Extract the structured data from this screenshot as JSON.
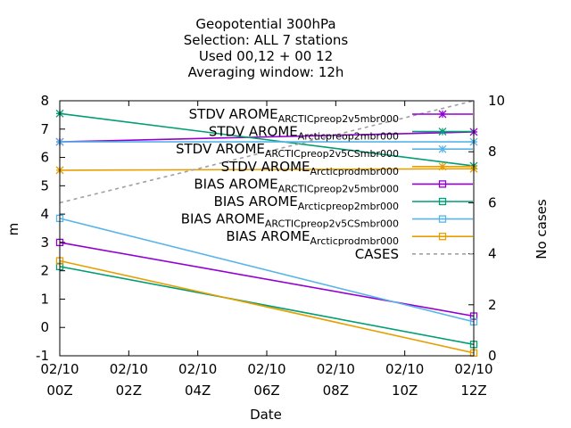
{
  "chart_data": {
    "type": "line",
    "title_lines": [
      "Geopotential 300hPa",
      "Selection: ALL      7 stations",
      "Used  00,12  + 00 12",
      "Averaging window: 12h"
    ],
    "xlabel": "Date",
    "ylabel": "m",
    "y2label": "No cases",
    "x": [
      0,
      12
    ],
    "xticks": [
      {
        "v": 0,
        "line1": "02/10",
        "line2": "00Z"
      },
      {
        "v": 2,
        "line1": "02/10",
        "line2": "02Z"
      },
      {
        "v": 4,
        "line1": "02/10",
        "line2": "04Z"
      },
      {
        "v": 6,
        "line1": "02/10",
        "line2": "06Z"
      },
      {
        "v": 8,
        "line1": "02/10",
        "line2": "08Z"
      },
      {
        "v": 10,
        "line1": "02/10",
        "line2": "10Z"
      },
      {
        "v": 12,
        "line1": "02/10",
        "line2": "12Z"
      }
    ],
    "ylim": [
      -1,
      8
    ],
    "yticks": [
      "-1",
      "0",
      "1",
      "2",
      "3",
      "4",
      "5",
      "6",
      "7",
      "8"
    ],
    "y2lim": [
      0,
      10
    ],
    "y2ticks": [
      "0",
      "2",
      "4",
      "6",
      "8",
      "10"
    ],
    "grid": false,
    "legend_position": "top-right",
    "series": [
      {
        "name": "STDV AROME_ARCTIC_preop2_v_5mbr000",
        "color": "#9400d3",
        "marker": "star",
        "axis": "y1",
        "values": [
          6.55,
          6.9
        ]
      },
      {
        "name": "STDV AROME_Arctic_preop2mbr000",
        "color": "#009e73",
        "marker": "star",
        "axis": "y1",
        "values": [
          7.55,
          5.7
        ]
      },
      {
        "name": "STDV AROME_ARCTIC_preop2_v_5_CSmbr000",
        "color": "#56b4e9",
        "marker": "star",
        "axis": "y1",
        "values": [
          6.55,
          6.55
        ]
      },
      {
        "name": "STDV AROME_Arctic_prodmbr000",
        "color": "#e69f00",
        "marker": "star",
        "axis": "y1",
        "values": [
          5.55,
          5.6
        ]
      },
      {
        "name": "BIAS AROME_ARCTIC_preop2_v_5mbr000",
        "color": "#9400d3",
        "marker": "square",
        "axis": "y1",
        "values": [
          3.0,
          0.4
        ]
      },
      {
        "name": "BIAS AROME_Arctic_preop2mbr000",
        "color": "#009e73",
        "marker": "square",
        "axis": "y1",
        "values": [
          2.15,
          -0.6
        ]
      },
      {
        "name": "BIAS AROME_ARCTIC_preop2_v_5_CSmbr000",
        "color": "#56b4e9",
        "marker": "square",
        "axis": "y1",
        "values": [
          3.85,
          0.2
        ]
      },
      {
        "name": "BIAS AROME_Arctic_prodmbr000",
        "color": "#e69f00",
        "marker": "square",
        "axis": "y1",
        "values": [
          2.35,
          -0.9
        ]
      },
      {
        "name": "CASES",
        "color": "#a0a0a0",
        "marker": "none",
        "dashed": true,
        "axis": "y2",
        "values": [
          6,
          10
        ]
      }
    ]
  }
}
